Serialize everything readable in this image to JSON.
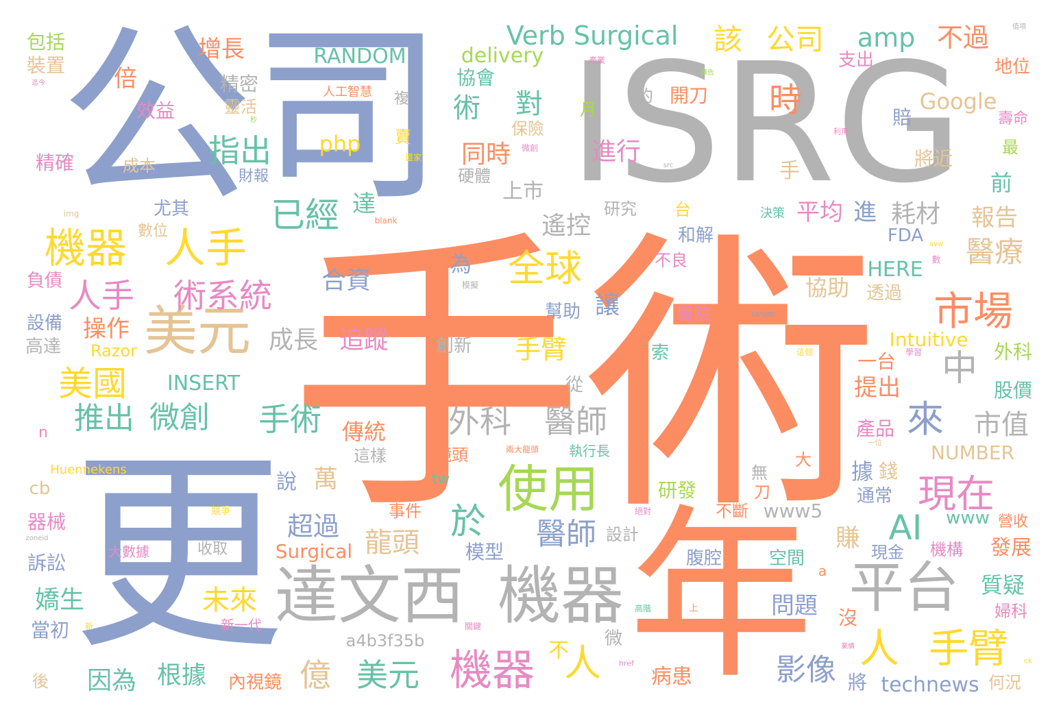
{
  "palette": {
    "orange": "#fc8d62",
    "blue": "#8da0cb",
    "gray": "#b3b3b3",
    "yellow": "#ffd92f",
    "green": "#a6d854",
    "pink": "#e78ac3",
    "teal": "#66c2a5",
    "tan": "#e5c494"
  },
  "words": [
    {
      "text": "手術",
      "color": "orange"
    },
    {
      "text": "ISRG",
      "color": "gray"
    },
    {
      "text": "公司",
      "color": "blue"
    },
    {
      "text": "更",
      "color": "blue"
    },
    {
      "text": "年",
      "color": "orange"
    },
    {
      "text": "達文西",
      "color": "gray"
    },
    {
      "text": "機器",
      "color": "gray"
    },
    {
      "text": "平台",
      "color": "gray"
    },
    {
      "text": "美元",
      "color": "tan"
    },
    {
      "text": "使用",
      "color": "green"
    },
    {
      "text": "機器",
      "color": "pink"
    },
    {
      "text": "人手",
      "color": "yellow"
    },
    {
      "text": "機器",
      "color": "yellow"
    },
    {
      "text": "人手",
      "color": "pink"
    },
    {
      "text": "術系統",
      "color": "pink"
    },
    {
      "text": "市場",
      "color": "orange"
    },
    {
      "text": "全球",
      "color": "yellow"
    },
    {
      "text": "現在",
      "color": "pink"
    },
    {
      "text": "已經",
      "color": "teal"
    },
    {
      "text": "美國",
      "color": "yellow"
    },
    {
      "text": "微創",
      "color": "teal"
    },
    {
      "text": "手術",
      "color": "teal"
    },
    {
      "text": "推出",
      "color": "teal"
    },
    {
      "text": "外科",
      "color": "gray"
    },
    {
      "text": "醫師",
      "color": "gray"
    },
    {
      "text": "人",
      "color": "yellow"
    },
    {
      "text": "手臂",
      "color": "yellow"
    },
    {
      "text": "人",
      "color": "yellow"
    },
    {
      "text": "中",
      "color": "gray"
    },
    {
      "text": "來",
      "color": "blue"
    },
    {
      "text": "AI",
      "color": "teal"
    },
    {
      "text": "於",
      "color": "teal"
    },
    {
      "text": "億",
      "color": "tan"
    },
    {
      "text": "美元",
      "color": "teal"
    },
    {
      "text": "龍頭",
      "color": "tan"
    },
    {
      "text": "醫師",
      "color": "blue"
    },
    {
      "text": "醫療",
      "color": "tan"
    },
    {
      "text": "市值",
      "color": "gray"
    },
    {
      "text": "時",
      "color": "orange"
    },
    {
      "text": "對",
      "color": "teal"
    },
    {
      "text": "術",
      "color": "teal"
    },
    {
      "text": "指出",
      "color": "teal"
    },
    {
      "text": "Verb Surgical",
      "color": "teal"
    },
    {
      "text": "該",
      "color": "yellow"
    },
    {
      "text": "公司",
      "color": "yellow"
    },
    {
      "text": "amp",
      "color": "teal"
    },
    {
      "text": "不過",
      "color": "orange"
    },
    {
      "text": "RANDOM",
      "color": "teal"
    },
    {
      "text": "delivery",
      "color": "green"
    },
    {
      "text": "Google",
      "color": "tan"
    },
    {
      "text": "php",
      "color": "yellow"
    },
    {
      "text": "增長",
      "color": "orange"
    },
    {
      "text": "倍",
      "color": "orange"
    },
    {
      "text": "精密",
      "color": "gray"
    },
    {
      "text": "靈活",
      "color": "tan"
    },
    {
      "text": "包括",
      "color": "green"
    },
    {
      "text": "裝置",
      "color": "tan"
    },
    {
      "text": "效益",
      "color": "pink"
    },
    {
      "text": "精確",
      "color": "pink"
    },
    {
      "text": "成本",
      "color": "tan"
    },
    {
      "text": "財報",
      "color": "blue"
    },
    {
      "text": "人工智慧",
      "color": "orange"
    },
    {
      "text": "複",
      "color": "gray"
    },
    {
      "text": "保險",
      "color": "tan"
    },
    {
      "text": "同時",
      "color": "orange"
    },
    {
      "text": "進行",
      "color": "pink"
    },
    {
      "text": "硬體",
      "color": "gray"
    },
    {
      "text": "協會",
      "color": "teal"
    },
    {
      "text": "開刀",
      "color": "orange"
    },
    {
      "text": "約",
      "color": "gray"
    },
    {
      "text": "月",
      "color": "green"
    },
    {
      "text": "上市",
      "color": "gray"
    },
    {
      "text": "手",
      "color": "tan"
    },
    {
      "text": "將近",
      "color": "tan"
    },
    {
      "text": "賠",
      "color": "blue"
    },
    {
      "text": "最",
      "color": "green"
    },
    {
      "text": "前",
      "color": "teal"
    },
    {
      "text": "支出",
      "color": "pink"
    },
    {
      "text": "地位",
      "color": "orange"
    },
    {
      "text": "壽命",
      "color": "pink"
    },
    {
      "text": "遙控",
      "color": "gray"
    },
    {
      "text": "達",
      "color": "teal"
    },
    {
      "text": "平均",
      "color": "pink"
    },
    {
      "text": "進",
      "color": "blue"
    },
    {
      "text": "耗材",
      "color": "gray"
    },
    {
      "text": "報告",
      "color": "tan"
    },
    {
      "text": "研究",
      "color": "gray"
    },
    {
      "text": "台",
      "color": "yellow"
    },
    {
      "text": "和解",
      "color": "blue"
    },
    {
      "text": "不良",
      "color": "pink"
    },
    {
      "text": "決策",
      "color": "teal"
    },
    {
      "text": "FDA",
      "color": "blue"
    },
    {
      "text": "HERE",
      "color": "teal"
    },
    {
      "text": "合資",
      "color": "blue"
    },
    {
      "text": "為",
      "color": "blue"
    },
    {
      "text": "讓",
      "color": "blue"
    },
    {
      "text": "幫助",
      "color": "blue"
    },
    {
      "text": "協助",
      "color": "tan"
    },
    {
      "text": "透過",
      "color": "tan"
    },
    {
      "text": "醫院",
      "color": "pink"
    },
    {
      "text": "操作",
      "color": "orange"
    },
    {
      "text": "成長",
      "color": "gray"
    },
    {
      "text": "追蹤",
      "color": "pink"
    },
    {
      "text": "創新",
      "color": "gray"
    },
    {
      "text": "手臂",
      "color": "yellow"
    },
    {
      "text": "索",
      "color": "teal"
    },
    {
      "text": "Intuitive",
      "color": "yellow"
    },
    {
      "text": "一台",
      "color": "orange"
    },
    {
      "text": "外科",
      "color": "green"
    },
    {
      "text": "提出",
      "color": "orange"
    },
    {
      "text": "股價",
      "color": "teal"
    },
    {
      "text": "INSERT",
      "color": "teal"
    },
    {
      "text": "Razor",
      "color": "yellow"
    },
    {
      "text": "從",
      "color": "gray"
    },
    {
      "text": "傳統",
      "color": "orange"
    },
    {
      "text": "這樣",
      "color": "gray"
    },
    {
      "text": "鏡頭",
      "color": "orange"
    },
    {
      "text": "執行長",
      "color": "teal"
    },
    {
      "text": "產品",
      "color": "pink"
    },
    {
      "text": "NUMBER",
      "color": "tan"
    },
    {
      "text": "萬",
      "color": "tan"
    },
    {
      "text": "說",
      "color": "blue"
    },
    {
      "text": "據",
      "color": "blue"
    },
    {
      "text": "錢",
      "color": "tan"
    },
    {
      "text": "通常",
      "color": "blue"
    },
    {
      "text": "無",
      "color": "gray"
    },
    {
      "text": "刀",
      "color": "orange"
    },
    {
      "text": "大",
      "color": "orange"
    },
    {
      "text": "研發",
      "color": "green"
    },
    {
      "text": "超過",
      "color": "blue"
    },
    {
      "text": "www5",
      "color": "gray"
    },
    {
      "text": "www",
      "color": "teal"
    },
    {
      "text": "營收",
      "color": "orange"
    },
    {
      "text": "不斷",
      "color": "orange"
    },
    {
      "text": "事件",
      "color": "orange"
    },
    {
      "text": "賺",
      "color": "tan"
    },
    {
      "text": "發展",
      "color": "orange"
    },
    {
      "text": "機構",
      "color": "pink"
    },
    {
      "text": "模型",
      "color": "blue"
    },
    {
      "text": "設計",
      "color": "gray"
    },
    {
      "text": "腹腔",
      "color": "blue"
    },
    {
      "text": "Surgical",
      "color": "orange"
    },
    {
      "text": "收取",
      "color": "gray"
    },
    {
      "text": "大數據",
      "color": "pink"
    },
    {
      "text": "空間",
      "color": "teal"
    },
    {
      "text": "現金",
      "color": "blue"
    },
    {
      "text": "質疑",
      "color": "teal"
    },
    {
      "text": "婦科",
      "color": "pink"
    },
    {
      "text": "問題",
      "color": "blue"
    },
    {
      "text": "未來",
      "color": "yellow"
    },
    {
      "text": "沒",
      "color": "orange"
    },
    {
      "text": "a4b3f35b",
      "color": "gray"
    },
    {
      "text": "微",
      "color": "gray"
    },
    {
      "text": "不",
      "color": "yellow"
    },
    {
      "text": "影像",
      "color": "blue"
    },
    {
      "text": "將",
      "color": "blue"
    },
    {
      "text": "何況",
      "color": "tan"
    },
    {
      "text": "technews",
      "color": "blue"
    },
    {
      "text": "因為",
      "color": "teal"
    },
    {
      "text": "根據",
      "color": "teal"
    },
    {
      "text": "內視鏡",
      "color": "orange"
    },
    {
      "text": "病患",
      "color": "orange"
    },
    {
      "text": "嬌生",
      "color": "teal"
    },
    {
      "text": "當初",
      "color": "blue"
    },
    {
      "text": "新一代",
      "color": "pink"
    },
    {
      "text": "後",
      "color": "tan"
    },
    {
      "text": "器械",
      "color": "pink"
    },
    {
      "text": "訴訟",
      "color": "blue"
    },
    {
      "text": "設備",
      "color": "blue"
    },
    {
      "text": "高達",
      "color": "gray"
    },
    {
      "text": "負債",
      "color": "pink"
    },
    {
      "text": "數位",
      "color": "tan"
    },
    {
      "text": "尤其",
      "color": "blue"
    },
    {
      "text": "cb",
      "color": "tan"
    },
    {
      "text": "n",
      "color": "pink"
    },
    {
      "text": "Huennekens",
      "color": "yellow"
    },
    {
      "text": "tw",
      "color": "teal"
    },
    {
      "text": "產業",
      "color": "pink"
    },
    {
      "text": "廣告",
      "color": "green"
    },
    {
      "text": "利用",
      "color": "pink"
    },
    {
      "text": "微創",
      "color": "pink"
    },
    {
      "text": "還家",
      "color": "yellow"
    },
    {
      "text": "src",
      "color": "gray"
    },
    {
      "text": "img",
      "color": "tan"
    },
    {
      "text": "blank",
      "color": "orange"
    },
    {
      "text": "模擬",
      "color": "gray"
    },
    {
      "text": "target",
      "color": "blue"
    },
    {
      "text": "數",
      "color": "pink"
    },
    {
      "text": "avw",
      "color": "yellow"
    },
    {
      "text": "這個",
      "color": "yellow"
    },
    {
      "text": "學習",
      "color": "pink"
    },
    {
      "text": "一位",
      "color": "tan"
    },
    {
      "text": "兩大龍頭",
      "color": "orange"
    },
    {
      "text": "絕對",
      "color": "pink"
    },
    {
      "text": "高階",
      "color": "teal"
    },
    {
      "text": "上",
      "color": "orange"
    },
    {
      "text": "關鍵",
      "color": "pink"
    },
    {
      "text": "業績",
      "color": "pink"
    },
    {
      "text": "href",
      "color": "pink"
    },
    {
      "text": "ck",
      "color": "yellow"
    },
    {
      "text": "競爭",
      "color": "yellow"
    },
    {
      "text": "新",
      "color": "yellow"
    },
    {
      "text": "zoneid",
      "color": "gray"
    },
    {
      "text": "迄今",
      "color": "pink"
    },
    {
      "text": "秒",
      "color": "green"
    },
    {
      "text": "值項",
      "color": "gray"
    },
    {
      "text": "a",
      "color": "orange"
    },
    {
      "text": "賣",
      "color": "yellow"
    }
  ]
}
